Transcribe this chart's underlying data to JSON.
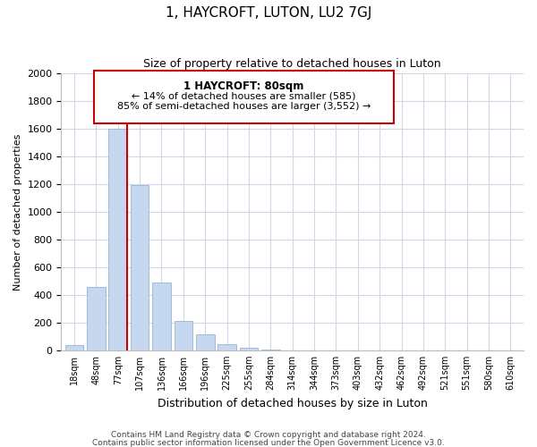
{
  "title": "1, HAYCROFT, LUTON, LU2 7GJ",
  "subtitle": "Size of property relative to detached houses in Luton",
  "xlabel": "Distribution of detached houses by size in Luton",
  "ylabel": "Number of detached properties",
  "bar_labels": [
    "18sqm",
    "48sqm",
    "77sqm",
    "107sqm",
    "136sqm",
    "166sqm",
    "196sqm",
    "225sqm",
    "255sqm",
    "284sqm",
    "314sqm",
    "344sqm",
    "373sqm",
    "403sqm",
    "432sqm",
    "462sqm",
    "492sqm",
    "521sqm",
    "551sqm",
    "580sqm",
    "610sqm"
  ],
  "bar_values": [
    35,
    455,
    1600,
    1195,
    490,
    210,
    115,
    45,
    20,
    5,
    0,
    0,
    0,
    0,
    0,
    0,
    0,
    0,
    0,
    0,
    0
  ],
  "bar_color": "#c5d8f0",
  "bar_edge_color": "#a0bcd8",
  "marker_label": "1 HAYCROFT: 80sqm",
  "annotation_line1": "← 14% of detached houses are smaller (585)",
  "annotation_line2": "85% of semi-detached houses are larger (3,552) →",
  "annotation_box_color": "#ffffff",
  "annotation_box_edge": "#cc0000",
  "marker_line_color": "#cc0000",
  "ylim": [
    0,
    2000
  ],
  "yticks": [
    0,
    200,
    400,
    600,
    800,
    1000,
    1200,
    1400,
    1600,
    1800,
    2000
  ],
  "footnote1": "Contains HM Land Registry data © Crown copyright and database right 2024.",
  "footnote2": "Contains public sector information licensed under the Open Government Licence v3.0.",
  "background_color": "#ffffff",
  "grid_color": "#d0d8e8"
}
